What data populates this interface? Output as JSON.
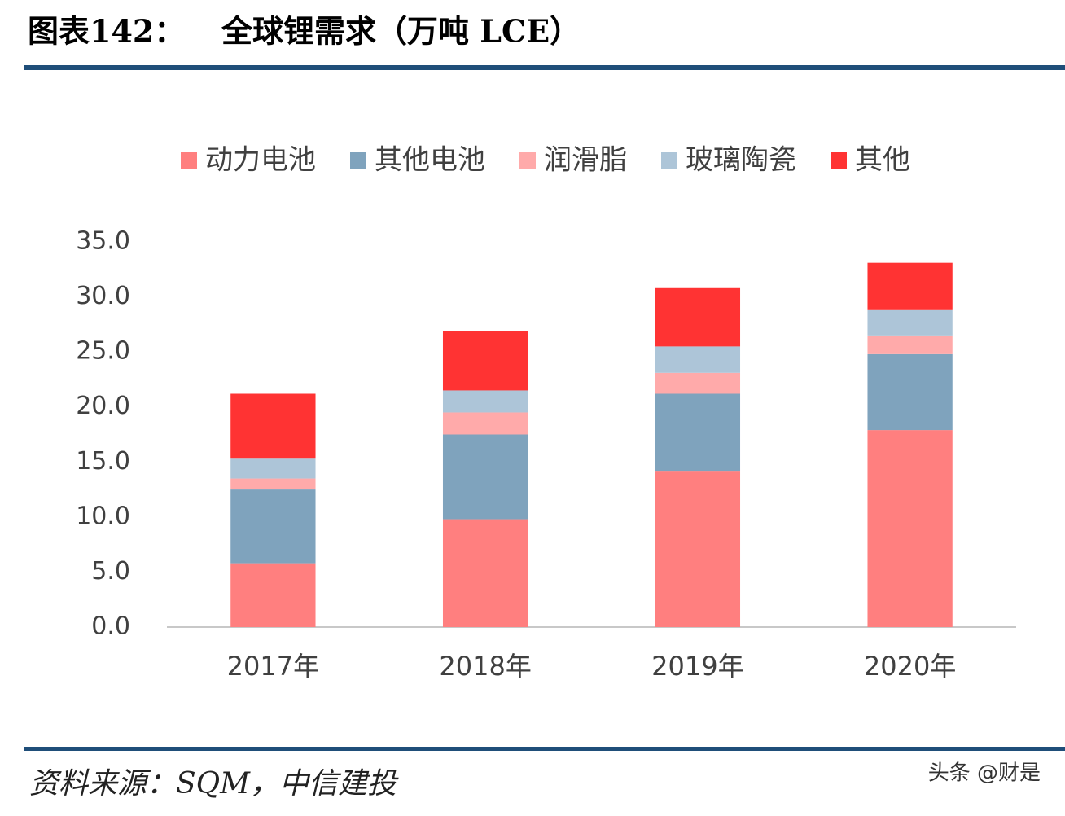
{
  "header": {
    "label": "图表142：",
    "title": "全球锂需求（万吨 LCE）"
  },
  "chart_data": {
    "type": "stacked_bar",
    "categories": [
      "2017年",
      "2018年",
      "2019年",
      "2020年"
    ],
    "series": [
      {
        "name": "动力电池",
        "color": "#ff7f7f",
        "values": [
          5.8,
          9.8,
          14.2,
          17.9
        ]
      },
      {
        "name": "其他电池",
        "color": "#7fa3bd",
        "values": [
          6.7,
          7.7,
          7.0,
          6.9
        ]
      },
      {
        "name": "润滑脂",
        "color": "#ffaaaa",
        "values": [
          1.0,
          2.0,
          1.9,
          1.7
        ]
      },
      {
        "name": "玻璃陶瓷",
        "color": "#adc5d8",
        "values": [
          1.8,
          2.0,
          2.4,
          2.3
        ]
      },
      {
        "name": "其他",
        "color": "#ff3333",
        "values": [
          5.9,
          5.4,
          5.3,
          4.3
        ]
      }
    ],
    "ylim": [
      0,
      35
    ],
    "yticks": [
      {
        "value": 0,
        "label": "0.0"
      },
      {
        "value": 5,
        "label": "5.0"
      },
      {
        "value": 10,
        "label": "10.0"
      },
      {
        "value": 15,
        "label": "15.0"
      },
      {
        "value": 20,
        "label": "20.0"
      },
      {
        "value": 25,
        "label": "25.0"
      },
      {
        "value": 30,
        "label": "30.0"
      },
      {
        "value": 35,
        "label": "35.0"
      }
    ],
    "legend": "top"
  },
  "footer": {
    "source": "资料来源：SQM，中信建投",
    "watermark": "头条 @财是"
  }
}
